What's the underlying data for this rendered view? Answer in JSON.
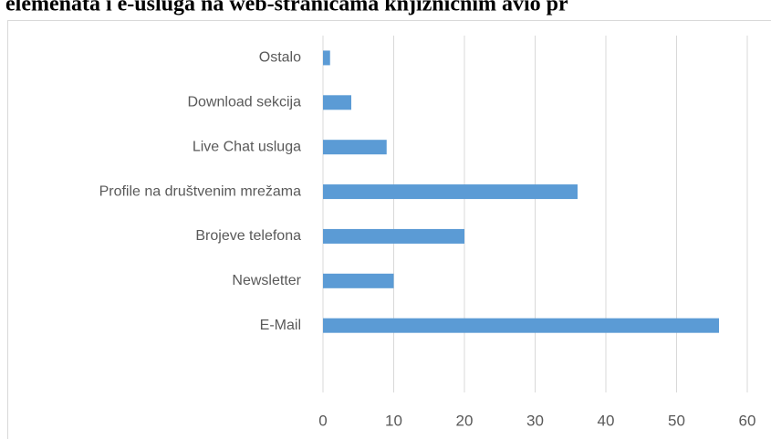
{
  "chart_data": {
    "type": "bar",
    "orientation": "horizontal",
    "title": "elemenata i e-usluga na web-stranicama knjižničnim avio pr",
    "categories": [
      "Ostalo",
      "Download sekcija",
      "Live Chat usluga",
      "Profile na društvenim mrežama",
      "Brojeve telefona",
      "Newsletter",
      "E-Mail",
      null
    ],
    "values": [
      1,
      4,
      9,
      36,
      20,
      10,
      56,
      null
    ],
    "color": "#5b9bd5",
    "xlim": [
      0,
      60
    ],
    "xticks": [
      0,
      10,
      20,
      30,
      40,
      50,
      60
    ],
    "grid": true
  }
}
